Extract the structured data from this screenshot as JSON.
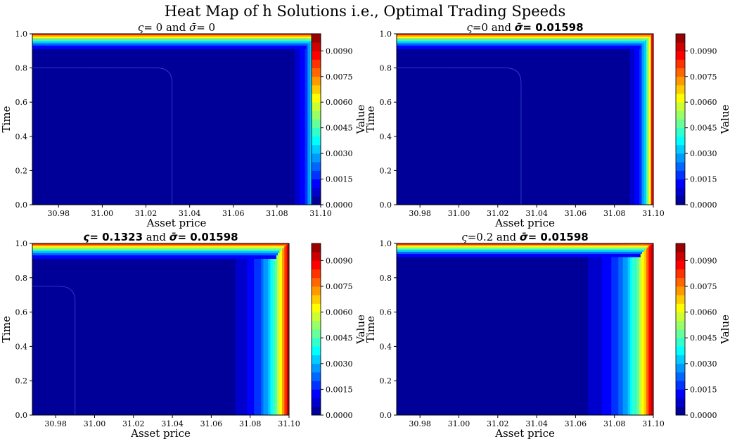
{
  "figure": {
    "suptitle": "Heat Map of h Solutions i.e., Optimal Trading Speeds"
  },
  "chart_data": [
    {
      "type": "heatmap",
      "title": {
        "zeta_label": "ς",
        "zeta_value": "= 0",
        "connector": "and",
        "sigma_label": "σ̄",
        "sigma_value": "= 0",
        "bold_zeta": false,
        "bold_sigma": false
      },
      "xlabel": "Asset price",
      "ylabel": "Time",
      "colorbar_label": "Value",
      "xlim": [
        30.968,
        31.1
      ],
      "ylim": [
        0.0,
        1.0
      ],
      "xticks": [
        "30.98",
        "31.00",
        "31.02",
        "31.04",
        "31.06",
        "31.08",
        "31.10"
      ],
      "yticks": [
        "0.0",
        "0.2",
        "0.4",
        "0.6",
        "0.8",
        "1.0"
      ],
      "colorbar_ticks": [
        "0.0000",
        "0.0015",
        "0.0030",
        "0.0045",
        "0.0060",
        "0.0075",
        "0.0090"
      ],
      "value_range": [
        0.0,
        0.01
      ],
      "levels": 20,
      "scale": 0.03,
      "inner_corner": [
        31.032,
        0.8
      ],
      "upper_band_time": 0.91,
      "colormap": "jet"
    },
    {
      "type": "heatmap",
      "title": {
        "zeta_label": "ς",
        "zeta_value": "=0",
        "connector": "and",
        "sigma_label": "σ̄",
        "sigma_value": "= 0.01598",
        "bold_zeta": false,
        "bold_sigma": true
      },
      "xlabel": "Asset price",
      "ylabel": "Time",
      "colorbar_label": "Value",
      "xlim": [
        30.968,
        31.1
      ],
      "ylim": [
        0.0,
        1.0
      ],
      "xticks": [
        "30.98",
        "31.00",
        "31.02",
        "31.04",
        "31.06",
        "31.08",
        "31.10"
      ],
      "yticks": [
        "0.0",
        "0.2",
        "0.4",
        "0.6",
        "0.8",
        "1.0"
      ],
      "colorbar_ticks": [
        "0.0000",
        "0.0015",
        "0.0030",
        "0.0045",
        "0.0060",
        "0.0075",
        "0.0090"
      ],
      "value_range": [
        0.0,
        0.01
      ],
      "levels": 20,
      "scale": 0.03,
      "inner_corner": [
        31.032,
        0.8
      ],
      "upper_band_time": 0.91,
      "colormap": "jet"
    },
    {
      "type": "heatmap",
      "title": {
        "zeta_label": "ς",
        "zeta_value": "= 0.1323",
        "connector": "and",
        "sigma_label": "σ̄",
        "sigma_value": "= 0.01598",
        "bold_zeta": true,
        "bold_sigma": true
      },
      "xlabel": "Asset price",
      "ylabel": "Time",
      "colorbar_label": "Value",
      "xlim": [
        30.968,
        31.1
      ],
      "ylim": [
        0.0,
        1.0
      ],
      "xticks": [
        "30.98",
        "31.00",
        "31.02",
        "31.04",
        "31.06",
        "31.08",
        "31.10"
      ],
      "yticks": [
        "0.0",
        "0.2",
        "0.4",
        "0.6",
        "0.8",
        "1.0"
      ],
      "colorbar_ticks": [
        "0.0000",
        "0.0015",
        "0.0030",
        "0.0045",
        "0.0060",
        "0.0075",
        "0.0090"
      ],
      "value_range": [
        0.0,
        0.01
      ],
      "levels": 20,
      "scale": 0.07,
      "inner_corner": [
        30.99,
        0.75
      ],
      "upper_band_time": 0.91,
      "colormap": "jet"
    },
    {
      "type": "heatmap",
      "title": {
        "zeta_label": "ς",
        "zeta_value": "=0.2",
        "connector": "and",
        "sigma_label": "σ̄",
        "sigma_value": "= 0.01598",
        "bold_zeta": false,
        "bold_sigma": true
      },
      "xlabel": "Asset price",
      "ylabel": "Time",
      "colorbar_label": "Value",
      "xlim": [
        30.968,
        31.1
      ],
      "ylim": [
        0.0,
        1.0
      ],
      "xticks": [
        "30.98",
        "31.00",
        "31.02",
        "31.04",
        "31.06",
        "31.08",
        "31.10"
      ],
      "yticks": [
        "0.0",
        "0.2",
        "0.4",
        "0.6",
        "0.8",
        "1.0"
      ],
      "colorbar_ticks": [
        "0.0000",
        "0.0015",
        "0.0030",
        "0.0045",
        "0.0060",
        "0.0075",
        "0.0090"
      ],
      "value_range": [
        0.0,
        0.01
      ],
      "levels": 20,
      "scale": 0.085,
      "inner_corner": null,
      "upper_band_time": 0.92,
      "colormap": "jet"
    }
  ]
}
